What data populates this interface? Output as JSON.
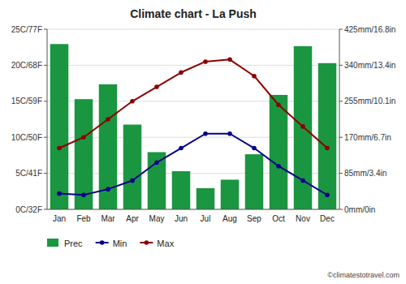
{
  "chart_data": {
    "type": "bar",
    "title": "Climate chart - La Push",
    "categories": [
      "Jan",
      "Feb",
      "Mar",
      "Apr",
      "May",
      "Jun",
      "Jul",
      "Aug",
      "Sep",
      "Oct",
      "Nov",
      "Dec"
    ],
    "series": [
      {
        "name": "Prec",
        "type": "bar",
        "axis": "y2",
        "color": "#1a9641",
        "values": [
          390,
          260,
          295,
          200,
          135,
          90,
          50,
          70,
          130,
          270,
          385,
          345
        ]
      },
      {
        "name": "Min",
        "type": "line",
        "marker": "circle",
        "color": "#00008B",
        "values": [
          2.2,
          2.0,
          2.8,
          4.0,
          6.5,
          8.5,
          10.5,
          10.5,
          8.5,
          6.0,
          4.0,
          2.0
        ]
      },
      {
        "name": "Max",
        "type": "line",
        "marker": "circle",
        "color": "#8B0000",
        "values": [
          8.5,
          10.0,
          12.5,
          15.0,
          17.0,
          19.0,
          20.5,
          20.8,
          18.5,
          14.5,
          11.5,
          8.5
        ]
      }
    ],
    "ylim": [
      0,
      25
    ],
    "yticks": [
      {
        "value": 0,
        "label": "0C/32F"
      },
      {
        "value": 5,
        "label": "5C/41F"
      },
      {
        "value": 10,
        "label": "10C/50F"
      },
      {
        "value": 15,
        "label": "15C/59F"
      },
      {
        "value": 20,
        "label": "20C/68F"
      },
      {
        "value": 25,
        "label": "25C/77F"
      }
    ],
    "y2lim": [
      0,
      425
    ],
    "y2ticks": [
      {
        "value": 0,
        "label": "0mm/0in"
      },
      {
        "value": 85,
        "label": "85mm/3.4in"
      },
      {
        "value": 170,
        "label": "170mm/6.7in"
      },
      {
        "value": 255,
        "label": "255mm/10.1in"
      },
      {
        "value": 340,
        "label": "340mm/13.4in"
      },
      {
        "value": 425,
        "label": "425mm/16.8in"
      }
    ],
    "grid": true,
    "legend": "bottom",
    "annotations": [
      "©climatestotravel.com"
    ]
  }
}
